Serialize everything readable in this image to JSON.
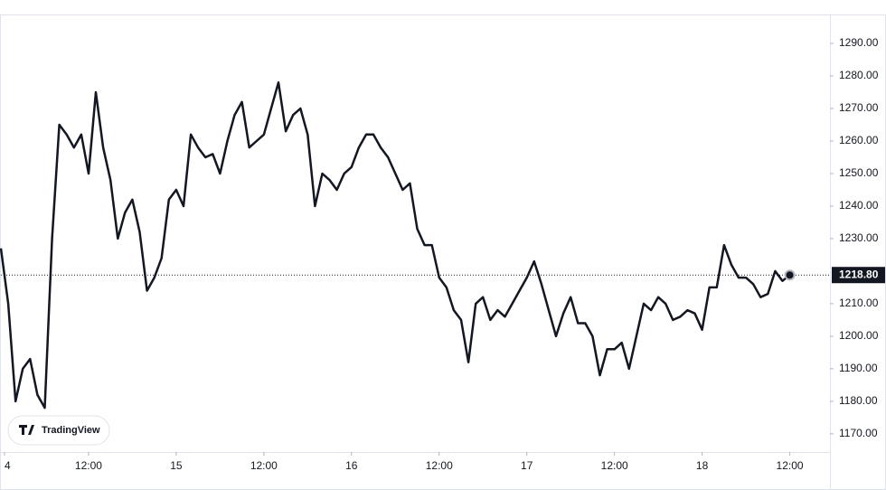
{
  "chart_data": {
    "type": "line",
    "watermark": "TradingView",
    "x": [
      0,
      1,
      2,
      3,
      4,
      5,
      6,
      7,
      8,
      9,
      10,
      11,
      12,
      13,
      14,
      15,
      16,
      17,
      18,
      19,
      20,
      21,
      22,
      23,
      24,
      25,
      26,
      27,
      28,
      29,
      30,
      31,
      32,
      33,
      34,
      35,
      36,
      37,
      38,
      39,
      40,
      41,
      42,
      43,
      44,
      45,
      46,
      47,
      48,
      49,
      50,
      51,
      52,
      53,
      54,
      55,
      56,
      57,
      58,
      59,
      60,
      61,
      62,
      63,
      64,
      65,
      66,
      67,
      68,
      69,
      70,
      71,
      72,
      73,
      74,
      75,
      76,
      77,
      78,
      79,
      80,
      81,
      82,
      83,
      84,
      85,
      86,
      87,
      88,
      89,
      90,
      91,
      92,
      93,
      94,
      95,
      96,
      97,
      98,
      99,
      100,
      101,
      102,
      103,
      104,
      105,
      106,
      107,
      108
    ],
    "series": [
      {
        "color": "#131722",
        "values": [
          1227,
          1210,
          1180,
          1190,
          1193,
          1182,
          1178,
          1230,
          1265,
          1262,
          1258,
          1262,
          1250,
          1275,
          1258,
          1248,
          1230,
          1238,
          1242,
          1232,
          1214,
          1218,
          1224,
          1242,
          1245,
          1240,
          1262,
          1258,
          1255,
          1256,
          1250,
          1260,
          1268,
          1272,
          1258,
          1260,
          1262,
          1270,
          1278,
          1263,
          1268,
          1270,
          1262,
          1240,
          1250,
          1248,
          1245,
          1250,
          1252,
          1258,
          1262,
          1262,
          1258,
          1255,
          1250,
          1245,
          1247,
          1233,
          1228,
          1228,
          1218,
          1215,
          1208,
          1205,
          1192,
          1210,
          1212,
          1205,
          1208,
          1206,
          1210,
          1214,
          1218,
          1223,
          1216,
          1208,
          1200,
          1207,
          1212,
          1204,
          1204,
          1200,
          1188,
          1196,
          1196,
          1198,
          1190,
          1200,
          1210,
          1208,
          1212,
          1210,
          1205,
          1206,
          1208,
          1207,
          1202,
          1215,
          1215,
          1228,
          1222,
          1218,
          1218,
          1216,
          1212,
          1213,
          1220,
          1217,
          1218.8
        ]
      }
    ],
    "xlim": [
      0,
      113.5
    ],
    "xticks": [
      {
        "value": 0,
        "label": "4"
      },
      {
        "value": 12,
        "label": "12:00"
      },
      {
        "value": 24,
        "label": "15"
      },
      {
        "value": 36,
        "label": "12:00"
      },
      {
        "value": 48,
        "label": "16"
      },
      {
        "value": 60,
        "label": "12:00"
      },
      {
        "value": 72,
        "label": "17"
      },
      {
        "value": 84,
        "label": "12:00"
      },
      {
        "value": 96,
        "label": "18"
      },
      {
        "value": 108,
        "label": "12:00"
      }
    ],
    "ylim": [
      1164.4,
      1298.9
    ],
    "yticks": [
      {
        "value": 1170,
        "label": "1170.00"
      },
      {
        "value": 1180,
        "label": "1180.00"
      },
      {
        "value": 1190,
        "label": "1190.00"
      },
      {
        "value": 1200,
        "label": "1200.00"
      },
      {
        "value": 1210,
        "label": "1210.00"
      },
      {
        "value": 1230,
        "label": "1230.00"
      },
      {
        "value": 1240,
        "label": "1240.00"
      },
      {
        "value": 1250,
        "label": "1250.00"
      },
      {
        "value": 1260,
        "label": "1260.00"
      },
      {
        "value": 1270,
        "label": "1270.00"
      },
      {
        "value": 1280,
        "label": "1280.00"
      },
      {
        "value": 1290,
        "label": "1290.00"
      }
    ],
    "last_price": {
      "value": 1218.8,
      "label": "1218.80"
    }
  }
}
